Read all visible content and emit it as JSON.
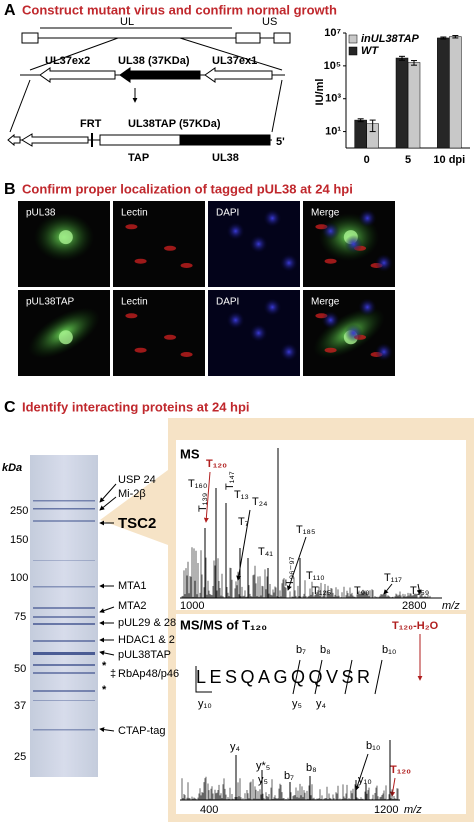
{
  "panel_a": {
    "letter": "A",
    "title": "Construct mutant virus and confirm normal growth",
    "diagram": {
      "ul": "UL",
      "us": "US",
      "ul37ex2": "UL37ex2",
      "ul38": "UL38 (37KDa)",
      "ul37ex1": "UL37ex1",
      "frt": "FRT",
      "ul38tap": "UL38TAP (57KDa)",
      "five_prime": "5'",
      "tap": "TAP",
      "ul38_segment": "UL38"
    }
  },
  "chart_data": {
    "type": "bar",
    "y_label": "IU/ml",
    "categories": [
      "0",
      "5",
      "10 dpi"
    ],
    "log_scale": true,
    "ylim": [
      1,
      10000000
    ],
    "yticks": [
      {
        "value": 10,
        "label": "10¹"
      },
      {
        "value": 1000,
        "label": "10³"
      },
      {
        "value": 100000,
        "label": "10⁵"
      },
      {
        "value": 10000000,
        "label": "10⁷"
      }
    ],
    "grid": false,
    "legend": "upper left",
    "series": [
      {
        "name": "inUL38TAP",
        "color": "#c8c8c8",
        "values": [
          30,
          160000,
          6000000
        ],
        "errors": [
          20,
          50000,
          1000000
        ]
      },
      {
        "name": "WT",
        "color": "#262626",
        "values": [
          50,
          300000,
          5000000
        ],
        "errors": [
          10,
          80000,
          700000
        ]
      }
    ]
  },
  "panel_b": {
    "letter": "B",
    "title": "Confirm proper localization of tagged pUL38 at 24 hpi",
    "rows": [
      [
        "pUL38",
        "Lectin",
        "DAPI",
        "Merge"
      ],
      [
        "pUL38TAP",
        "Lectin",
        "DAPI",
        "Merge"
      ]
    ]
  },
  "panel_c": {
    "letter": "C",
    "title": "Identify interacting proteins at 24 hpi",
    "gel": {
      "unit": "kDa",
      "markers": [
        "250",
        "150",
        "100",
        "75",
        "50",
        "37",
        "25"
      ],
      "bands": [
        "USP 24",
        "Mi-2β",
        "TSC2",
        "MTA1",
        "MTA2",
        "pUL29 & 28",
        "HDAC1 & 2",
        "pUL38TAP",
        "*",
        "‡",
        "RbAp48/p46",
        "*",
        "CTAP-tag"
      ]
    },
    "ms": {
      "title": "MS",
      "peaks": [
        "T₁₆₀",
        "T₁₂₀",
        "T₁₃",
        "T₁₃₉",
        "T₁₄₇",
        "T₇",
        "T₂₄",
        "T₁₈₅",
        "T₄₁",
        "T₉₆₋₉₇",
        "T₁₁₀",
        "T₁₂₅",
        "T₉₀",
        "T₁₁₇",
        "T₁₅₉"
      ],
      "axis": [
        "1000",
        "2800"
      ],
      "axis_unit": "m/z"
    },
    "msms": {
      "title": "MS/MS of T₁₂₀",
      "precursor": "T₁₂₀-H₂O",
      "sequence": "LESQAGQQVSR",
      "fragments": [
        "b₇",
        "b₈",
        "b₁₀",
        "y₁₀",
        "y₅",
        "y₄"
      ],
      "peaks": [
        "y₄",
        "y*₅",
        "y₅",
        "b₇",
        "b₈",
        "b₁₀",
        "y₁₀",
        "T₁₂₀"
      ],
      "axis": [
        "400",
        "1200"
      ],
      "axis_unit": "m/z"
    }
  }
}
